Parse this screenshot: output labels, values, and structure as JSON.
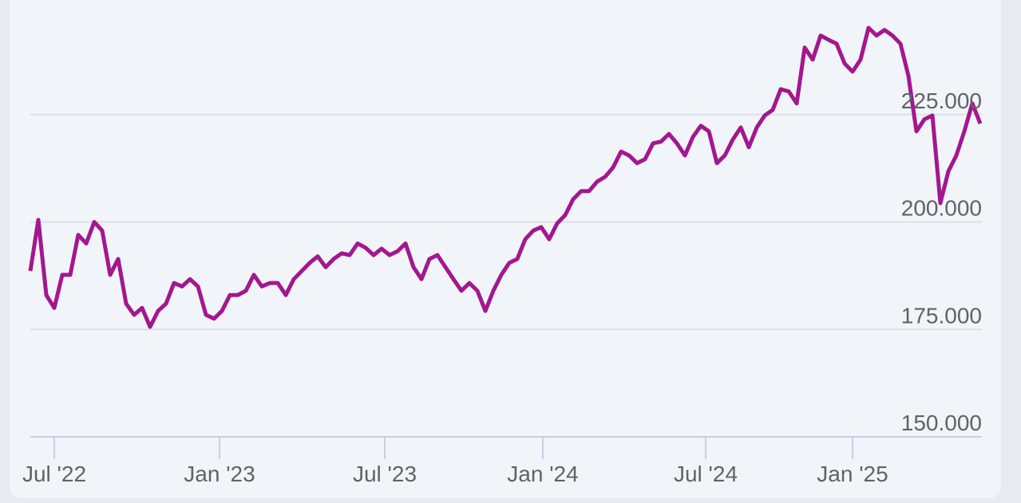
{
  "chart_data": {
    "type": "line",
    "color": "#a3178f",
    "values": [
      188.6,
      200.5,
      183,
      180,
      187.7,
      187.7,
      197,
      195,
      200,
      198,
      187.7,
      191.4,
      181,
      178.4,
      180,
      175.6,
      179.3,
      181,
      185.8,
      185,
      186.7,
      185,
      178.4,
      177.5,
      179.3,
      183,
      183,
      184,
      187.7,
      185,
      185.8,
      185.8,
      183,
      186.7,
      188.6,
      190.5,
      192,
      189.5,
      191.4,
      192.7,
      192.3,
      195,
      194,
      192.3,
      193.8,
      192.3,
      193.2,
      195,
      189.5,
      186.7,
      191.4,
      192.3,
      189.5,
      186.7,
      184,
      185.8,
      184,
      179.3,
      184,
      187.7,
      190.5,
      191.4,
      196,
      198,
      198.8,
      196,
      199.7,
      201.6,
      205.3,
      207.2,
      207.2,
      209.4,
      210.5,
      212.7,
      216.4,
      215.5,
      213.7,
      214.6,
      218.3,
      218.7,
      220.5,
      218.3,
      215.5,
      219.8,
      222.4,
      221.1,
      213.7,
      215.5,
      219.2,
      222,
      217.4,
      222,
      224.8,
      226.1,
      230.9,
      230.4,
      227.6,
      240.6,
      237.8,
      243.4,
      242.4,
      241.5,
      236.9,
      235,
      237.8,
      245.2,
      243.4,
      244.7,
      243.4,
      241.5,
      234,
      221.1,
      223.9,
      224.8,
      204.4,
      211.8,
      215.5,
      221.1,
      227.6,
      222.9
    ],
    "xlim": [
      0,
      119
    ],
    "xticks": [
      {
        "value": 3,
        "label": "Jul '22"
      },
      {
        "value": 23.7,
        "label": "Jan '23"
      },
      {
        "value": 44.4,
        "label": "Jul '23"
      },
      {
        "value": 64.2,
        "label": "Jan '24"
      },
      {
        "value": 84.6,
        "label": "Jul '24"
      },
      {
        "value": 103,
        "label": "Jan '25"
      }
    ],
    "ylim": [
      150,
      250
    ],
    "yticks": [
      {
        "value": 150,
        "label": "150.000"
      },
      {
        "value": 175,
        "label": "175.000"
      },
      {
        "value": 200,
        "label": "200.000"
      },
      {
        "value": 225,
        "label": "225.000"
      }
    ],
    "grid": true
  }
}
